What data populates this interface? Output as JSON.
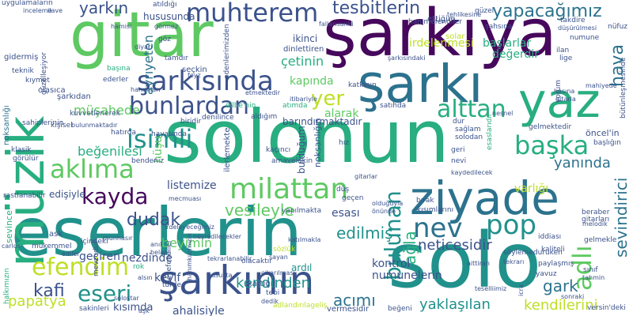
{
  "background": "#ffffff",
  "palette": {
    "purple": "#46085c",
    "indigo": "#3b528b",
    "blue": "#2c728e",
    "teal": "#21918c",
    "green": "#28ae80",
    "lime": "#5ec962",
    "yellow": "#bddf26"
  },
  "words": [
    {
      "t": "solonun",
      "c": "#28ae80"
    },
    {
      "t": "şarkıya",
      "c": "#46085c"
    },
    {
      "t": "gitar",
      "c": "#5ec962"
    },
    {
      "t": "eserlerin",
      "c": "#21918c"
    },
    {
      "t": "solo",
      "c": "#21918c"
    },
    {
      "t": "ziyade",
      "c": "#2c728e"
    },
    {
      "t": "şarkı",
      "c": "#2c728e"
    },
    {
      "t": "yaz",
      "c": "#28ae80"
    },
    {
      "t": "müzik",
      "c": "#28ae80"
    },
    {
      "t": "şarkının",
      "c": "#3b528b"
    },
    {
      "t": "milattan",
      "c": "#5ec962"
    },
    {
      "t": "şarkısında",
      "c": "#3b528b"
    },
    {
      "t": "muhterem",
      "c": "#3b528b"
    },
    {
      "t": "bunlardan",
      "c": "#3b528b"
    },
    {
      "t": "aklıma",
      "c": "#5ec962"
    },
    {
      "t": "efendim",
      "c": "#bddf26"
    },
    {
      "t": "isimli",
      "c": "#21918c"
    },
    {
      "t": "alttan",
      "c": "#28ae80"
    },
    {
      "t": "kayda",
      "c": "#46085c"
    },
    {
      "t": "bulunan",
      "c": "#21918c"
    },
    {
      "t": "eseri",
      "c": "#21918c"
    },
    {
      "t": "başka",
      "c": "#28ae80"
    },
    {
      "t": "pop",
      "c": "#21918c"
    },
    {
      "t": "nev",
      "c": "#2c728e"
    },
    {
      "t": "adlı",
      "c": "#5ec962"
    },
    {
      "t": "sevindirici",
      "c": "#2c728e"
    },
    {
      "t": "hava",
      "c": "#2c728e"
    },
    {
      "t": "yapacağımız",
      "c": "#2c728e"
    },
    {
      "t": "tesbitlerin",
      "c": "#3b528b"
    },
    {
      "t": "yer",
      "c": "#bddf26"
    },
    {
      "t": "yarkın",
      "c": "#3b528b"
    },
    {
      "t": "vesileyle",
      "c": "#5ec962"
    },
    {
      "t": "dudak",
      "c": "#3b528b"
    },
    {
      "t": "kafi",
      "c": "#3b528b"
    },
    {
      "t": "papatya",
      "c": "#bddf26"
    },
    {
      "t": "kendinden",
      "c": "#21918c"
    },
    {
      "t": "acımı",
      "c": "#2c728e"
    },
    {
      "t": "edilmiş",
      "c": "#21918c"
    },
    {
      "t": "yaklaşılan",
      "c": "#21918c"
    },
    {
      "t": "kendilerini",
      "c": "#bddf26"
    },
    {
      "t": "gark",
      "c": "#2c728e"
    },
    {
      "t": "yanında",
      "c": "#2c728e"
    },
    {
      "t": "neticesidir",
      "c": "#3b528b"
    },
    {
      "t": "ağla",
      "c": "#28ae80"
    },
    {
      "t": "beğenilesi",
      "c": "#28ae80"
    },
    {
      "t": "müşahede",
      "c": "#5ec962"
    },
    {
      "t": "ayrıyeten",
      "c": "#2c728e"
    },
    {
      "t": "varlığı",
      "c": "#bddf26"
    },
    {
      "t": "çetinin",
      "c": "#28ae80"
    },
    {
      "t": "irdelenmesi",
      "c": "#bddf26"
    },
    {
      "t": "başlarlar",
      "c": "#28ae80"
    },
    {
      "t": "değerdir",
      "c": "#28ae80"
    },
    {
      "t": "ahalisiyle",
      "c": "#3b528b"
    },
    {
      "t": "kısımda",
      "c": "#3b528b"
    },
    {
      "t": "geçiren",
      "c": "#3b528b"
    },
    {
      "t": "kontrol",
      "c": "#3b528b"
    },
    {
      "t": "numunelerin",
      "c": "#3b528b"
    },
    {
      "t": "beyimin",
      "c": "#5ec962"
    },
    {
      "t": "nezdinde",
      "c": "#3b528b"
    },
    {
      "t": "kapında",
      "c": "#5ec962"
    },
    {
      "t": "barındırmaktadır",
      "c": "#3b528b"
    },
    {
      "t": "alarak",
      "c": "#5ec962"
    },
    {
      "t": "listemize",
      "c": "#3b528b"
    },
    {
      "t": "esası",
      "c": "#3b528b"
    },
    {
      "t": "ardıl",
      "c": "#21918c"
    },
    {
      "t": "keyif",
      "c": "#3b528b"
    },
    {
      "t": "edişiyle",
      "c": "#3b528b"
    },
    {
      "t": "hususunda",
      "c": "#3b528b"
    },
    {
      "t": "ikinci",
      "c": "#3b528b"
    },
    {
      "t": "ettiğim",
      "c": "#3b528b"
    },
    {
      "t": "solar",
      "c": "#bddf26"
    },
    {
      "t": "seçkin",
      "c": "#3b528b"
    },
    {
      "t": "dinlettiren",
      "c": "#3b528b"
    },
    {
      "t": "katkının",
      "c": "#3b528b"
    },
    {
      "t": "gidermiş",
      "c": "#3b528b"
    },
    {
      "t": "olasıca",
      "c": "#3b528b"
    },
    {
      "t": "kıymet",
      "c": "#3b528b"
    },
    {
      "t": "şarkıdan",
      "c": "#3b528b"
    },
    {
      "t": "noksanlığı",
      "c": "#2c728e"
    },
    {
      "t": "sahiplerinin",
      "c": "#3b528b"
    },
    {
      "t": "klasik",
      "c": "#3b528b"
    },
    {
      "t": "görülür",
      "c": "#3b528b"
    },
    {
      "t": "rastlanabilir",
      "c": "#3b528b"
    },
    {
      "t": "ask",
      "c": "#3b528b"
    },
    {
      "t": "sevince",
      "c": "#28ae80"
    },
    {
      "t": "mükemmel",
      "c": "#3b528b"
    },
    {
      "t": "hayatında",
      "c": "#3b528b"
    },
    {
      "t": "hüşu",
      "c": "#5ec962"
    },
    {
      "t": "biridir",
      "c": "#3b528b"
    },
    {
      "t": "ilerlemekte",
      "c": "#3b528b"
    },
    {
      "t": "bulduğum",
      "c": "#3b528b"
    },
    {
      "t": "noksanlığın",
      "c": "#3b528b"
    },
    {
      "t": "hız",
      "c": "#3b528b"
    },
    {
      "t": "solodan",
      "c": "#3b528b"
    },
    {
      "t": "esaslarıdır",
      "c": "#28ae80"
    },
    {
      "t": "öncel'in",
      "c": "#3b528b"
    },
    {
      "t": "başlığın",
      "c": "#3b528b"
    },
    {
      "t": "gelmektedir",
      "c": "#3b528b"
    },
    {
      "t": "beraber",
      "c": "#3b528b"
    },
    {
      "t": "gitarları",
      "c": "#3b528b"
    },
    {
      "t": "gelmekle",
      "c": "#3b528b"
    },
    {
      "t": "iddiası",
      "c": "#3b528b"
    },
    {
      "t": "kaliteli",
      "c": "#3b528b"
    },
    {
      "t": "vermesidir",
      "c": "#3b528b"
    },
    {
      "t": "sakinleri",
      "c": "#3b528b"
    },
    {
      "t": "halkımızın",
      "c": "#28ae80"
    },
    {
      "t": "türde",
      "c": "#3b528b"
    },
    {
      "t": "kattığı",
      "c": "#3b528b"
    },
    {
      "t": "olacaktır",
      "c": "#3b528b"
    },
    {
      "t": "beyefendiler",
      "c": "#3b528b"
    },
    {
      "t": "yavuz",
      "c": "#3b528b"
    },
    {
      "t": "paylaşmış",
      "c": "#3b528b"
    },
    {
      "t": "adlandırılageliş",
      "c": "#bddf26"
    },
    {
      "t": "versin'deki",
      "c": "#3b528b"
    },
    {
      "t": "uygulamaların",
      "c": "#3b528b"
    },
    {
      "t": "teknik",
      "c": "#3b528b"
    },
    {
      "t": "güzelleşiyor",
      "c": "#3b528b"
    },
    {
      "t": "ederler",
      "c": "#3b528b"
    },
    {
      "t": "başına",
      "c": "#28ae80"
    },
    {
      "t": "atıldığı",
      "c": "#3b528b"
    },
    {
      "t": "göz",
      "c": "#3b528b"
    },
    {
      "t": "tamdır",
      "c": "#3b528b"
    },
    {
      "t": "hanımefendiler",
      "c": "#3b528b"
    },
    {
      "t": "takdire",
      "c": "#3b528b"
    },
    {
      "t": "düşürülmesi",
      "c": "#3b528b"
    },
    {
      "t": "nüfuz",
      "c": "#3b528b"
    },
    {
      "t": "numune",
      "c": "#3b528b"
    },
    {
      "t": "ilan",
      "c": "#3b528b"
    },
    {
      "t": "lige",
      "c": "#3b528b"
    },
    {
      "t": "bütünleşmesinde",
      "c": "#3b528b"
    },
    {
      "t": "mahiyede",
      "c": "#3b528b"
    },
    {
      "t": "yorum",
      "c": "#3b528b"
    },
    {
      "t": "satıhda",
      "c": "#3b528b"
    },
    {
      "t": "atımda",
      "c": "#28ae80"
    },
    {
      "t": "kuvvetlenerek",
      "c": "#3b528b"
    },
    {
      "t": "dilbe'nin",
      "c": "#28ae80"
    },
    {
      "t": "etmektedir",
      "c": "#3b528b"
    },
    {
      "t": "güzel",
      "c": "#3b528b"
    },
    {
      "t": "şahsına",
      "c": "#3b528b"
    },
    {
      "t": "kişisel",
      "c": "#3b528b"
    },
    {
      "t": "hatırda",
      "c": "#3b528b"
    },
    {
      "t": "bendeniz",
      "c": "#3b528b"
    },
    {
      "t": "denilince",
      "c": "#3b528b"
    },
    {
      "t": "aldığım",
      "c": "#3b528b"
    },
    {
      "t": "kaçıncı",
      "c": "#3b528b"
    },
    {
      "t": "amavelakin",
      "c": "#3b528b"
    },
    {
      "t": "geçen",
      "c": "#3b528b"
    },
    {
      "t": "düş",
      "c": "#3b528b"
    },
    {
      "t": "nevi",
      "c": "#3b528b"
    },
    {
      "t": "geri",
      "c": "#3b528b"
    },
    {
      "t": "sağlam",
      "c": "#3b528b"
    },
    {
      "t": "dur",
      "c": "#3b528b"
    },
    {
      "t": "bırak",
      "c": "#3b528b"
    },
    {
      "t": "kısımlarını",
      "c": "#3b528b"
    },
    {
      "t": "içindeki",
      "c": "#3b528b"
    },
    {
      "t": "yapılmakta",
      "c": "#3b528b"
    },
    {
      "t": "katılmakla",
      "c": "#3b528b"
    },
    {
      "t": "mevzudur",
      "c": "#3b528b"
    },
    {
      "t": "hususta",
      "c": "#3b528b"
    },
    {
      "t": "tebi",
      "c": "#3b528b"
    },
    {
      "t": "beğeni",
      "c": "#3b528b"
    },
    {
      "t": "sonraki",
      "c": "#3b528b"
    },
    {
      "t": "icra",
      "c": "#3b528b"
    },
    {
      "t": "sınıf",
      "c": "#3b528b"
    },
    {
      "t": "tahmin",
      "c": "#3b528b"
    },
    {
      "t": "hanımkızımızın",
      "c": "#3b528b"
    },
    {
      "t": "aşk",
      "c": "#3b528b"
    },
    {
      "t": "sözlük",
      "c": "#bddf26"
    },
    {
      "t": "söylemeduruken",
      "c": "#3b528b"
    },
    {
      "t": "edenlerimizden",
      "c": "#3b528b"
    },
    {
      "t": "irdeleyeceğimiz",
      "c": "#3b528b"
    },
    {
      "t": "carlos",
      "c": "#3b528b"
    },
    {
      "t": "münhasır",
      "c": "#3b528b"
    },
    {
      "t": "görmez",
      "c": "#3b528b"
    },
    {
      "t": "ilave",
      "c": "#3b528b"
    },
    {
      "t": "inceleme",
      "c": "#3b528b"
    },
    {
      "t": "feyz",
      "c": "#3b528b"
    },
    {
      "t": "fallarısanki",
      "c": "#3b528b"
    },
    {
      "t": "tehlikesine",
      "c": "#3b528b"
    },
    {
      "t": "tekrarı",
      "c": "#3b528b"
    },
    {
      "t": "hasına",
      "c": "#3b528b"
    },
    {
      "t": "gitarla",
      "c": "#3b528b"
    },
    {
      "t": "bulunmaktadır",
      "c": "#3b528b"
    },
    {
      "t": "ediler",
      "c": "#3b528b"
    },
    {
      "t": "anıl",
      "c": "#3b528b"
    },
    {
      "t": "belani",
      "c": "#3b528b"
    },
    {
      "t": "rok",
      "c": "#28ae80"
    },
    {
      "t": "alsın",
      "c": "#3b528b"
    },
    {
      "t": "solostar",
      "c": "#3b528b"
    },
    {
      "t": "neşredilecekler",
      "c": "#3b528b"
    },
    {
      "t": "mecmuası",
      "c": "#3b528b"
    },
    {
      "t": "sayan",
      "c": "#3b528b"
    },
    {
      "t": "tekrarlanabilir",
      "c": "#3b528b"
    },
    {
      "t": "çıkarılması",
      "c": "#3b528b"
    },
    {
      "t": "melodik",
      "c": "#3b528b"
    },
    {
      "t": "kaydedilecek",
      "c": "#3b528b"
    },
    {
      "t": "itibariyle",
      "c": "#3b528b"
    },
    {
      "t": "olduğuyla",
      "c": "#3b528b"
    },
    {
      "t": "önünde",
      "c": "#3b528b"
    },
    {
      "t": "teselliimiz",
      "c": "#3b528b"
    },
    {
      "t": "şarkısındaki",
      "c": "#3b528b"
    },
    {
      "t": "hanımları",
      "c": "#3b528b"
    },
    {
      "t": "diyarı",
      "c": "#3b528b"
    },
    {
      "t": "dedik",
      "c": "#3b528b"
    },
    {
      "t": "aittiran",
      "c": "#3b528b"
    },
    {
      "t": "hamisi",
      "c": "#3b528b"
    },
    {
      "t": "gitarlar",
      "c": "#3b528b"
    },
    {
      "t": "nesnel",
      "c": "#3b528b"
    },
    {
      "t": "girecektir",
      "c": "#3b528b"
    },
    {
      "t": "kaydı",
      "c": "#3b528b"
    },
    {
      "t": "soloda",
      "c": "#3b528b"
    },
    {
      "t": "soyut",
      "c": "#3b528b"
    }
  ]
}
